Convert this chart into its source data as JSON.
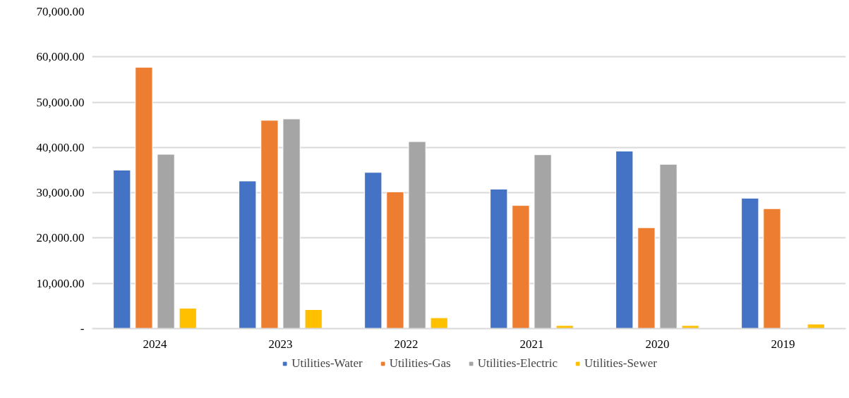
{
  "chart_data": {
    "type": "bar",
    "categories": [
      "2024",
      "2023",
      "2022",
      "2021",
      "2020",
      "2019"
    ],
    "series": [
      {
        "name": "Utilities-Water",
        "color": "#4472c4",
        "values": [
          35000,
          32600,
          34500,
          30800,
          39200,
          28800
        ]
      },
      {
        "name": "Utilities-Gas",
        "color": "#ed7d31",
        "values": [
          57700,
          46000,
          30200,
          27200,
          22300,
          26500
        ]
      },
      {
        "name": "Utilities-Electric",
        "color": "#a5a5a5",
        "values": [
          38500,
          46300,
          41300,
          38400,
          36300,
          null
        ]
      },
      {
        "name": "Utilities-Sewer",
        "color": "#ffc000",
        "values": [
          4500,
          4200,
          2400,
          700,
          700,
          1000
        ]
      }
    ],
    "ylim": [
      0,
      70000
    ],
    "yticks": [
      {
        "value": 0,
        "label": "-"
      },
      {
        "value": 10000,
        "label": "10,000.00"
      },
      {
        "value": 20000,
        "label": "20,000.00"
      },
      {
        "value": 30000,
        "label": "30,000.00"
      },
      {
        "value": 40000,
        "label": "40,000.00"
      },
      {
        "value": 50000,
        "label": "50,000.00"
      },
      {
        "value": 60000,
        "label": "60,000.00"
      },
      {
        "value": 70000,
        "label": "70,000.00"
      }
    ],
    "grid": "y",
    "legend": "bottom"
  }
}
